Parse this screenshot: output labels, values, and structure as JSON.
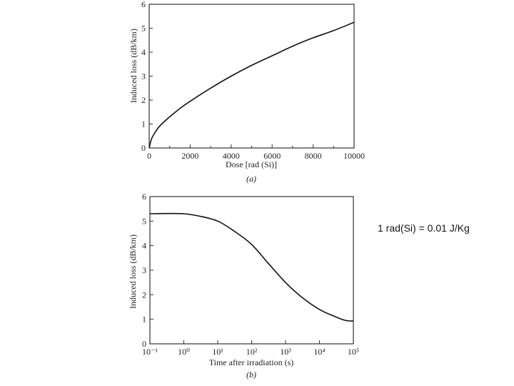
{
  "note": "1 rad(Si) = 0.01 J/Kg",
  "chart_data": [
    {
      "type": "line",
      "panel_label": "(a)",
      "xlabel": "Dose [rad (Si)]",
      "ylabel": "Induced loss (dB/km)",
      "xlim": [
        0,
        10000
      ],
      "ylim": [
        0,
        6
      ],
      "x_ticks": [
        "0",
        "2000",
        "4000",
        "6000",
        "8000",
        "10000"
      ],
      "y_ticks": [
        "0",
        "1",
        "2",
        "3",
        "4",
        "5",
        "6"
      ],
      "grid": false,
      "series": [
        {
          "x": [
            0,
            100,
            250,
            500,
            1000,
            1500,
            2000,
            3000,
            4000,
            5000,
            6000,
            7000,
            8000,
            9000,
            10000
          ],
          "y": [
            0,
            0.35,
            0.6,
            0.9,
            1.3,
            1.65,
            1.95,
            2.5,
            3.0,
            3.45,
            3.85,
            4.25,
            4.6,
            4.9,
            5.25
          ]
        }
      ]
    },
    {
      "type": "line",
      "panel_label": "(b)",
      "xlabel": "Time after irradiation (s)",
      "ylabel": "Induced loss (dB/km)",
      "x_scale": "log",
      "xlim": [
        0.1,
        100000
      ],
      "ylim": [
        0,
        6
      ],
      "x_ticks": [
        "10⁻¹",
        "10⁰",
        "10¹",
        "10²",
        "10³",
        "10⁴",
        "10⁵"
      ],
      "y_ticks": [
        "0",
        "1",
        "2",
        "3",
        "4",
        "5",
        "6"
      ],
      "grid": false,
      "series": [
        {
          "x": [
            0.1,
            0.3,
            1,
            3,
            10,
            30,
            100,
            300,
            1000,
            3000,
            10000,
            30000,
            60000,
            100000
          ],
          "y": [
            5.3,
            5.31,
            5.3,
            5.2,
            5.0,
            4.6,
            4.05,
            3.3,
            2.5,
            1.9,
            1.4,
            1.1,
            0.95,
            0.93
          ]
        }
      ]
    }
  ]
}
